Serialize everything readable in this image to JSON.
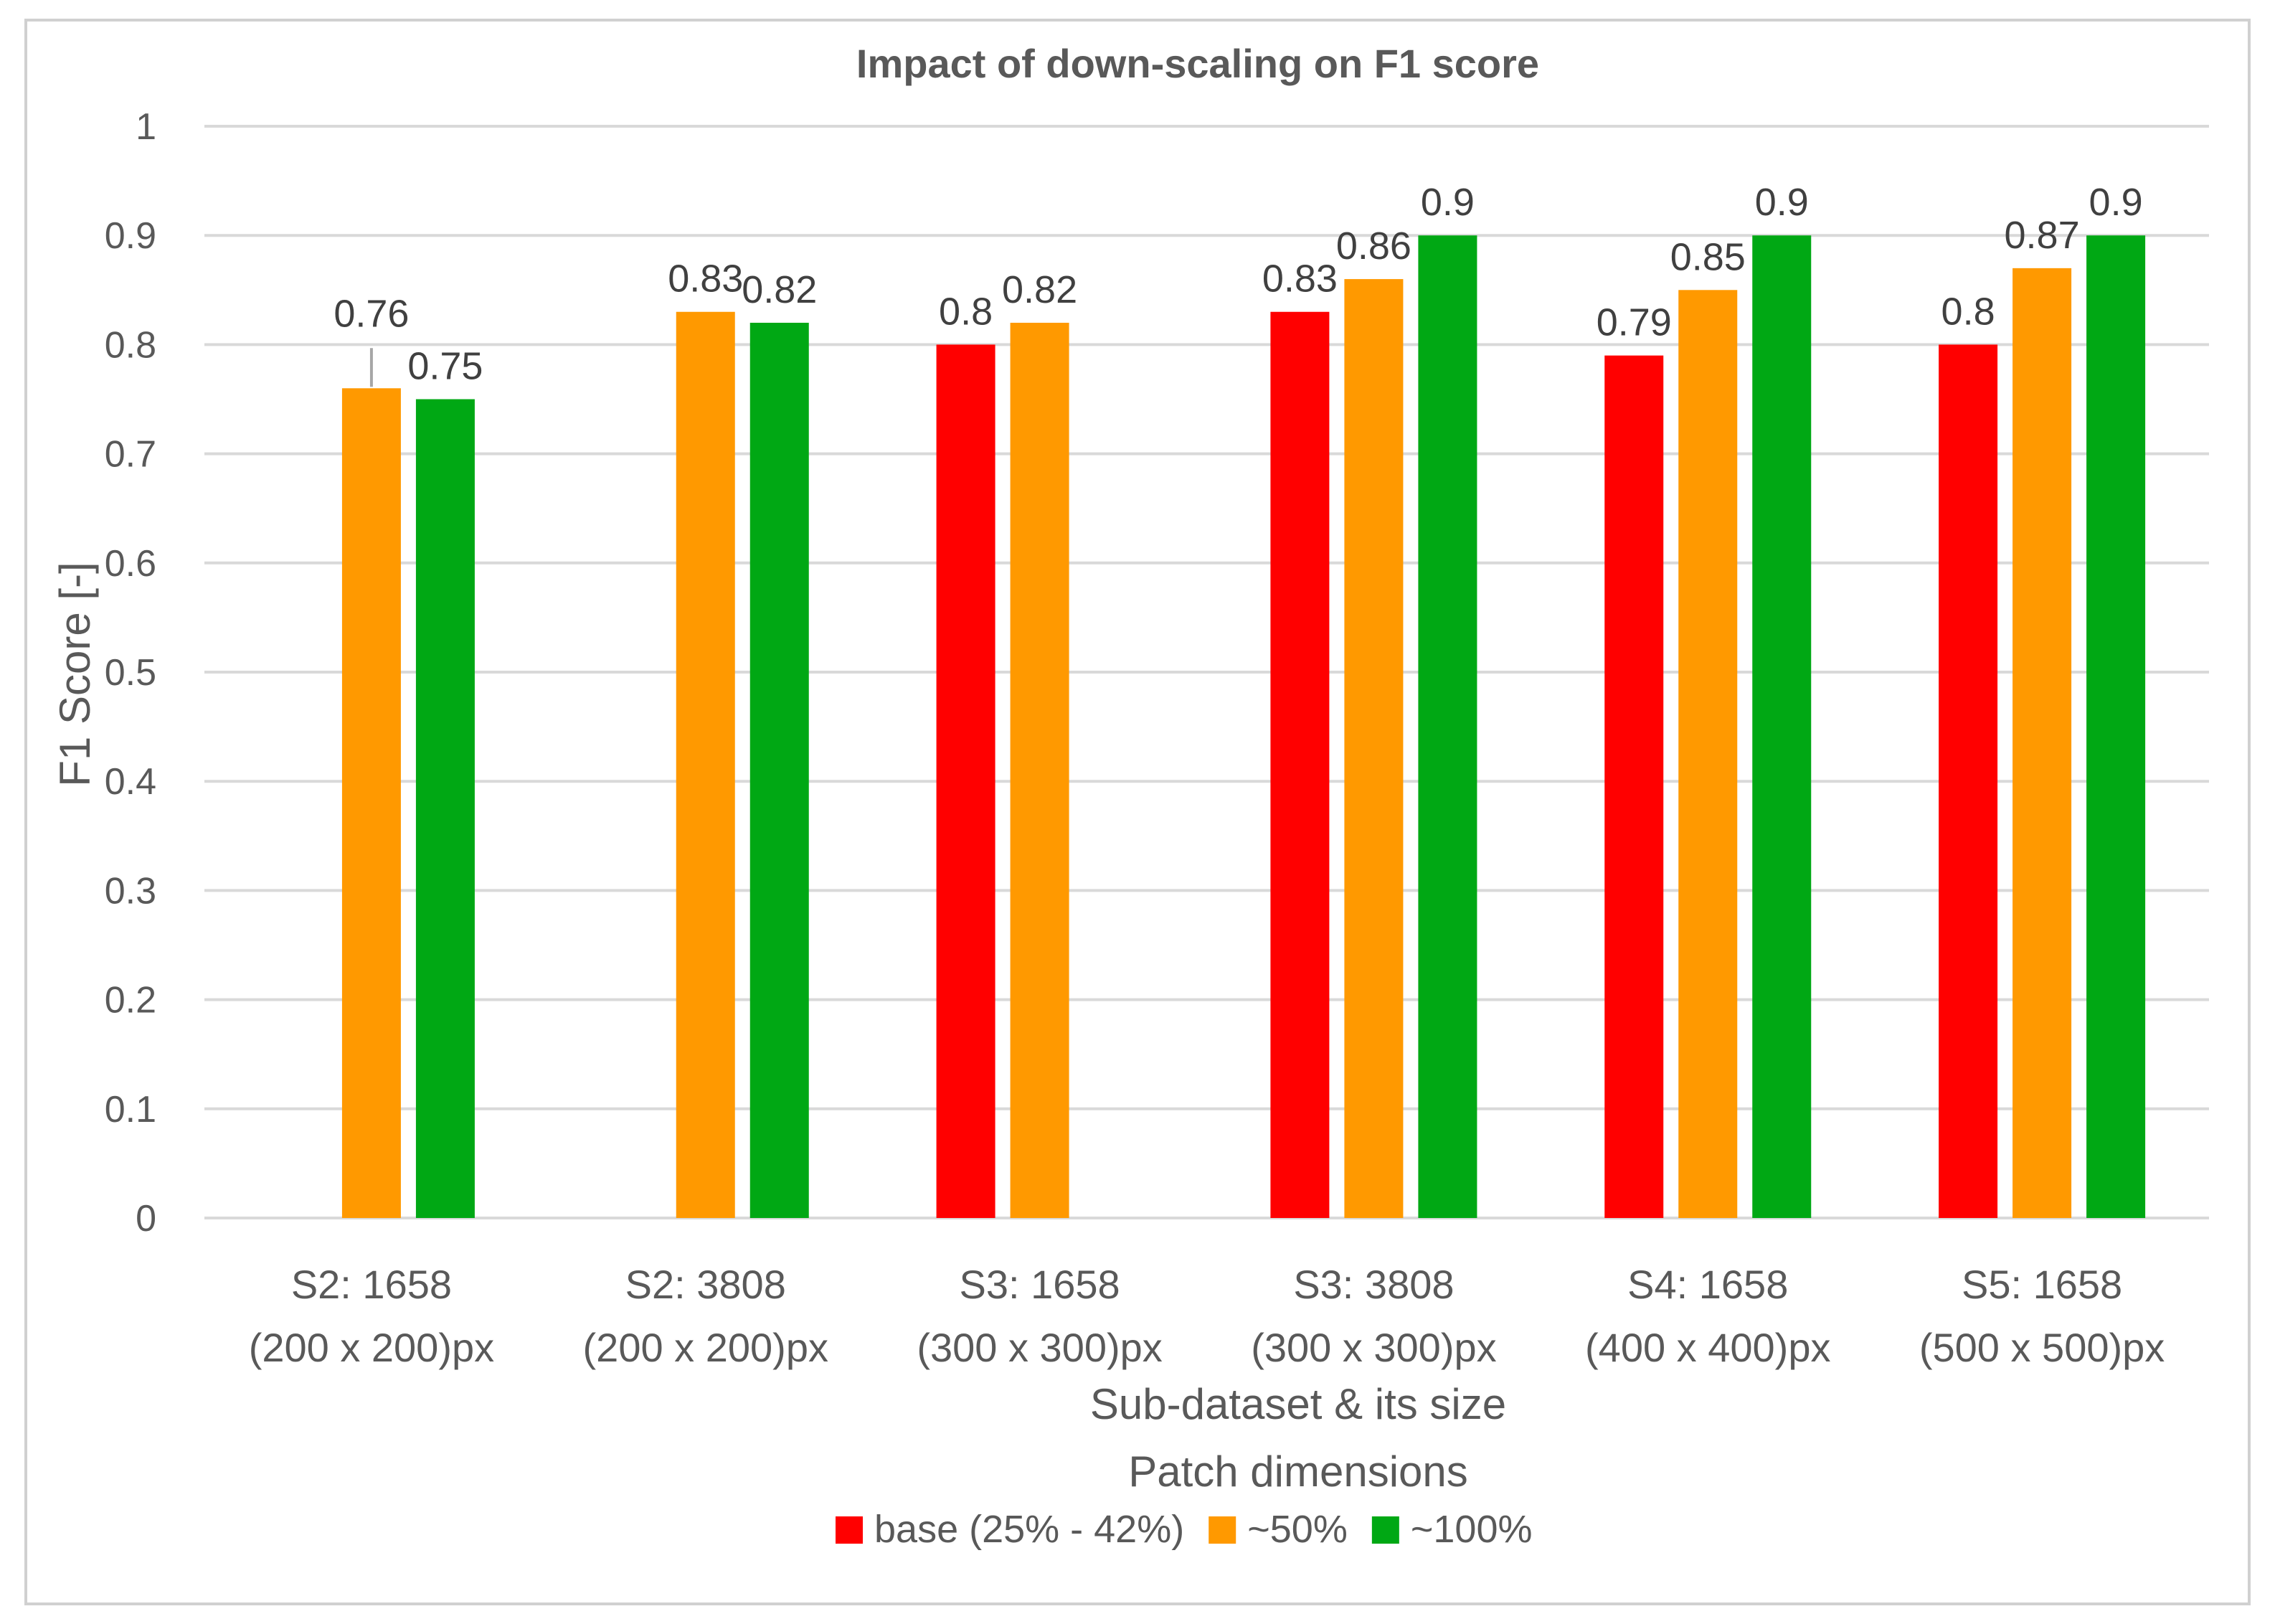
{
  "chart_data": {
    "type": "bar",
    "title": "Impact of down-scaling on F1 score",
    "xlabel": [
      "Sub-dataset & its size",
      "Patch dimensions"
    ],
    "ylabel": "F1 Score [-]",
    "ylim": [
      0,
      1
    ],
    "yticks": [
      0,
      0.1,
      0.2,
      0.3,
      0.4,
      0.5,
      0.6,
      0.7,
      0.8,
      0.9,
      1
    ],
    "yticklabels": [
      "0",
      "0.1",
      "0.2",
      "0.3",
      "0.4",
      "0.5",
      "0.6",
      "0.7",
      "0.8",
      "0.9",
      "1"
    ],
    "grid": true,
    "legend": "bottom",
    "categories": [
      [
        "S2: 1658",
        "(200 x 200)px"
      ],
      [
        "S2: 3808",
        "(200 x 200)px"
      ],
      [
        "S3: 1658",
        "(300 x 300)px"
      ],
      [
        "S3: 3808",
        "(300 x 300)px"
      ],
      [
        "S4: 1658",
        "(400 x 400)px"
      ],
      [
        "S5: 1658",
        "(500 x 500)px"
      ]
    ],
    "series": [
      {
        "name": "base (25% - 42%)",
        "color": "#ff0000",
        "values": [
          null,
          null,
          0.8,
          0.83,
          0.79,
          0.8
        ],
        "labels": [
          "",
          "",
          "0.8",
          "0.83",
          "0.79",
          "0.8"
        ]
      },
      {
        "name": "~50%",
        "color": "#ff9900",
        "values": [
          0.76,
          0.83,
          0.82,
          0.86,
          0.85,
          0.87
        ],
        "labels": [
          "0.76",
          "0.83",
          "0.82",
          "0.86",
          "0.85",
          "0.87"
        ]
      },
      {
        "name": "~100%",
        "color": "#00a814",
        "values": [
          0.75,
          0.82,
          null,
          0.9,
          0.9,
          0.9
        ],
        "labels": [
          "0.75",
          "0.82",
          "",
          "0.9",
          "0.9",
          "0.9"
        ]
      }
    ]
  }
}
